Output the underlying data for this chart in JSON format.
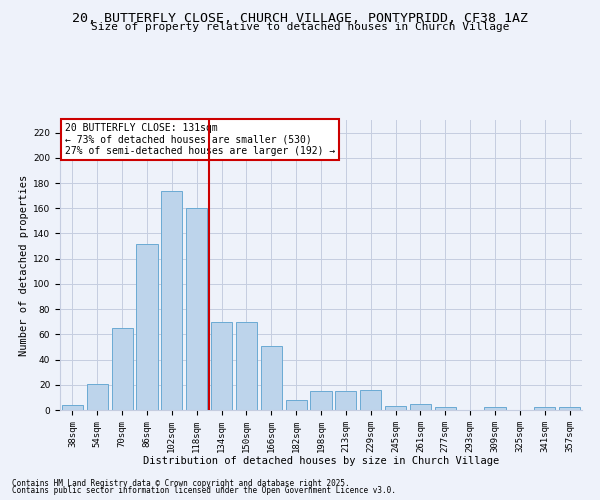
{
  "title1": "20, BUTTERFLY CLOSE, CHURCH VILLAGE, PONTYPRIDD, CF38 1AZ",
  "title2": "Size of property relative to detached houses in Church Village",
  "xlabel": "Distribution of detached houses by size in Church Village",
  "ylabel": "Number of detached properties",
  "categories": [
    "38sqm",
    "54sqm",
    "70sqm",
    "86sqm",
    "102sqm",
    "118sqm",
    "134sqm",
    "150sqm",
    "166sqm",
    "182sqm",
    "198sqm",
    "213sqm",
    "229sqm",
    "245sqm",
    "261sqm",
    "277sqm",
    "293sqm",
    "309sqm",
    "325sqm",
    "341sqm",
    "357sqm"
  ],
  "values": [
    4,
    21,
    65,
    132,
    174,
    160,
    70,
    70,
    51,
    8,
    15,
    15,
    16,
    3,
    5,
    2,
    0,
    2,
    0,
    2,
    2
  ],
  "bar_color": "#bdd4eb",
  "bar_edge_color": "#6aaad4",
  "vline_x": 6,
  "vline_color": "#cc0000",
  "annotation_text": "20 BUTTERFLY CLOSE: 131sqm\n← 73% of detached houses are smaller (530)\n27% of semi-detached houses are larger (192) →",
  "annotation_box_color": "#ffffff",
  "annotation_box_edge": "#cc0000",
  "ylim": [
    0,
    230
  ],
  "yticks": [
    0,
    20,
    40,
    60,
    80,
    100,
    120,
    140,
    160,
    180,
    200,
    220
  ],
  "footer1": "Contains HM Land Registry data © Crown copyright and database right 2025.",
  "footer2": "Contains public sector information licensed under the Open Government Licence v3.0.",
  "bg_color": "#eef2fa",
  "grid_color": "#c5cde0",
  "title_fontsize": 9.5,
  "subtitle_fontsize": 8,
  "axis_label_fontsize": 7.5,
  "tick_fontsize": 6.5,
  "footer_fontsize": 5.5
}
